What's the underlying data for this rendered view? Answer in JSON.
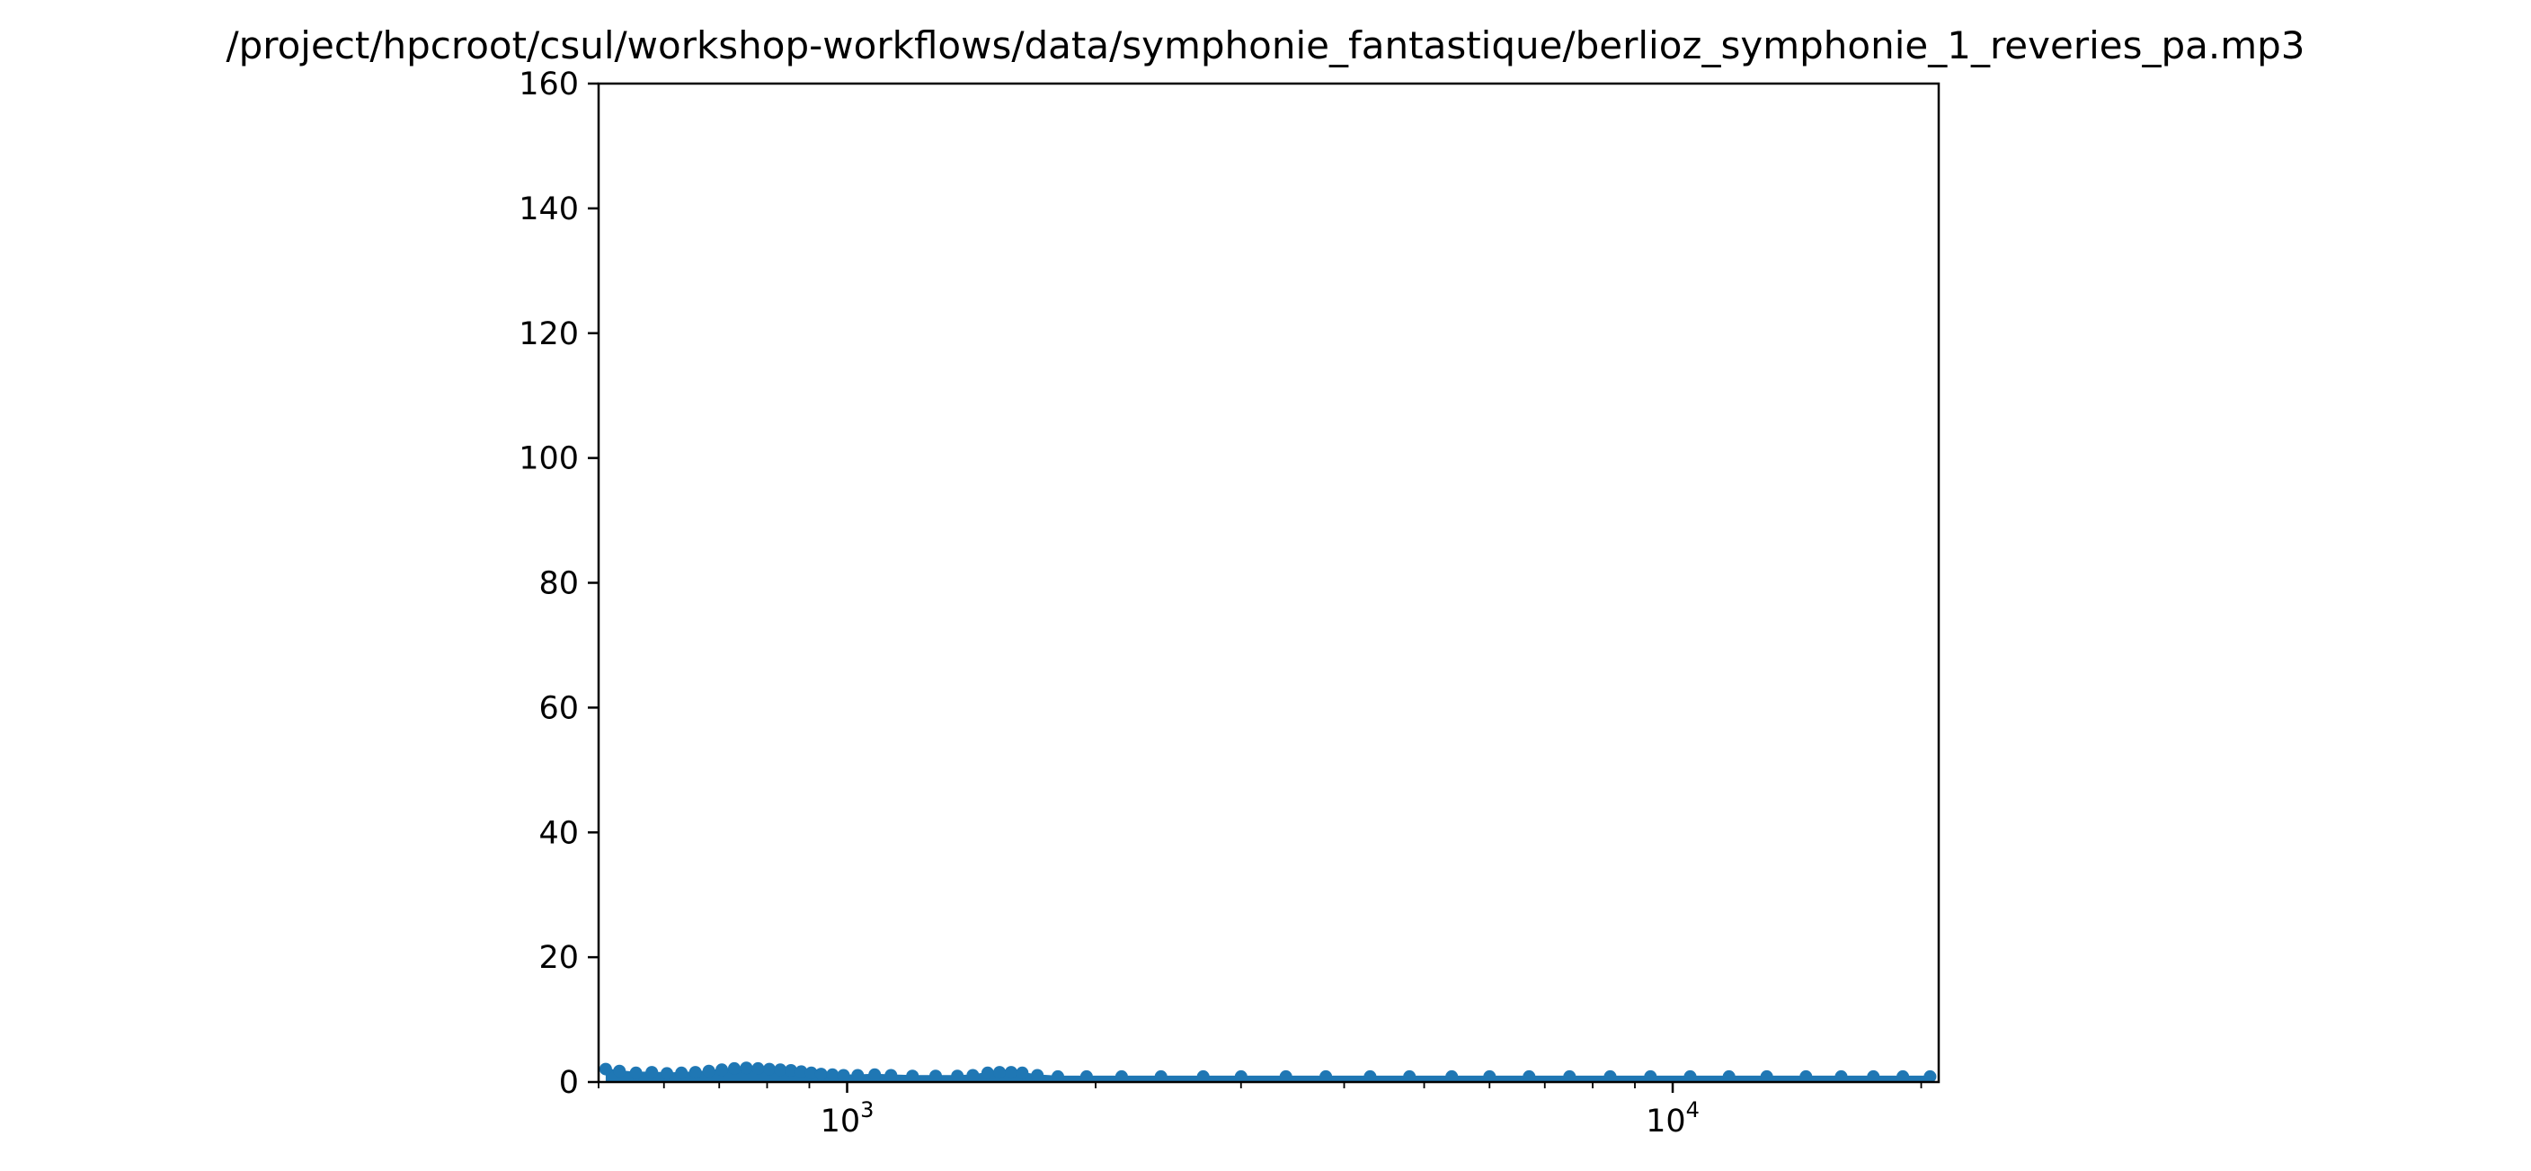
{
  "chart_data": {
    "type": "scatter",
    "title": "/project/hpcroot/csul/workshop-workflows/data/symphonie_fantastique/berlioz_symphonie_1_reveries_pa.mp3",
    "xlabel": "",
    "ylabel": "",
    "xscale": "log",
    "xlim": [
      500,
      21000
    ],
    "ylim": [
      0,
      160
    ],
    "grid": false,
    "legend": "none",
    "y_ticks": [
      0,
      20,
      40,
      60,
      80,
      100,
      120,
      140,
      160
    ],
    "x_ticks": [
      {
        "value": 1000,
        "base": "10",
        "exp": "3"
      },
      {
        "value": 10000,
        "base": "10",
        "exp": "4"
      }
    ],
    "color": "#1f77b4",
    "points": [
      [
        510,
        1.5
      ],
      [
        530,
        1.2
      ],
      [
        555,
        0.9
      ],
      [
        580,
        1.0
      ],
      [
        605,
        0.8
      ],
      [
        630,
        0.9
      ],
      [
        655,
        1.0
      ],
      [
        680,
        1.2
      ],
      [
        705,
        1.4
      ],
      [
        730,
        1.6
      ],
      [
        755,
        1.7
      ],
      [
        780,
        1.6
      ],
      [
        805,
        1.5
      ],
      [
        830,
        1.4
      ],
      [
        855,
        1.3
      ],
      [
        880,
        1.1
      ],
      [
        905,
        0.9
      ],
      [
        930,
        0.7
      ],
      [
        960,
        0.6
      ],
      [
        990,
        0.5
      ],
      [
        1030,
        0.5
      ],
      [
        1080,
        0.6
      ],
      [
        1130,
        0.5
      ],
      [
        1200,
        0.4
      ],
      [
        1280,
        0.4
      ],
      [
        1360,
        0.4
      ],
      [
        1420,
        0.5
      ],
      [
        1480,
        0.9
      ],
      [
        1530,
        1.0
      ],
      [
        1580,
        1.0
      ],
      [
        1630,
        0.9
      ],
      [
        1700,
        0.5
      ],
      [
        1800,
        0.3
      ],
      [
        1950,
        0.3
      ],
      [
        2150,
        0.3
      ],
      [
        2400,
        0.3
      ],
      [
        2700,
        0.3
      ],
      [
        3000,
        0.3
      ],
      [
        3400,
        0.3
      ],
      [
        3800,
        0.3
      ],
      [
        4300,
        0.3
      ],
      [
        4800,
        0.3
      ],
      [
        5400,
        0.3
      ],
      [
        6000,
        0.3
      ],
      [
        6700,
        0.3
      ],
      [
        7500,
        0.3
      ],
      [
        8400,
        0.3
      ],
      [
        9400,
        0.3
      ],
      [
        10500,
        0.3
      ],
      [
        11700,
        0.3
      ],
      [
        13000,
        0.3
      ],
      [
        14500,
        0.3
      ],
      [
        16000,
        0.3
      ],
      [
        17500,
        0.3
      ],
      [
        19000,
        0.3
      ],
      [
        20500,
        0.3
      ]
    ]
  }
}
